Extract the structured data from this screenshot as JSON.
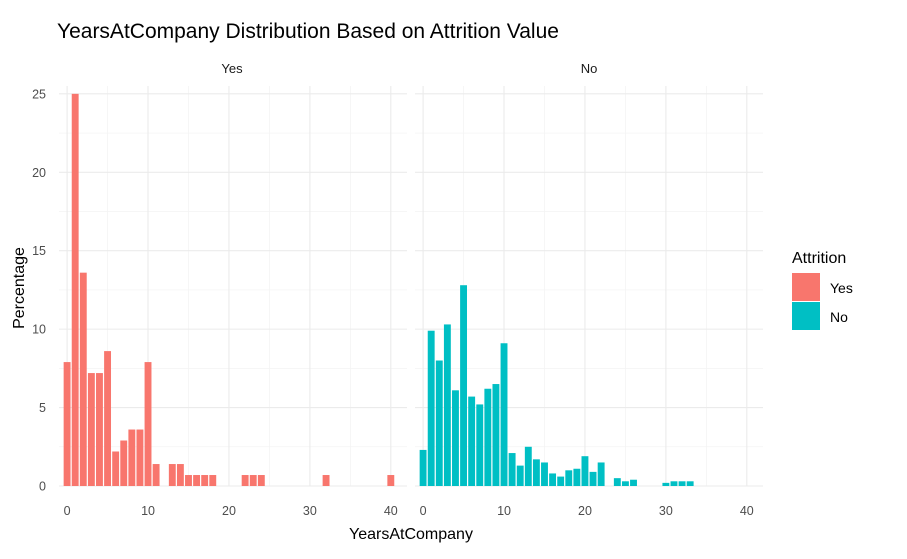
{
  "chart_data": {
    "type": "bar",
    "title": "YearsAtCompany Distribution Based on Attrition Value",
    "xlabel": "YearsAtCompany",
    "ylabel": "Percentage",
    "xlim": [
      -1,
      42
    ],
    "ylim": [
      0,
      25.5
    ],
    "x_ticks": [
      0,
      10,
      20,
      30,
      40
    ],
    "y_ticks": [
      0,
      5,
      10,
      15,
      20,
      25
    ],
    "grid": true,
    "legend": {
      "title": "Attrition",
      "position": "right"
    },
    "panels": [
      {
        "name": "Yes",
        "color": "#F8766D",
        "bins": [
          [
            0,
            7.9
          ],
          [
            1,
            25.0
          ],
          [
            2,
            13.6
          ],
          [
            3,
            7.2
          ],
          [
            4,
            7.2
          ],
          [
            5,
            8.6
          ],
          [
            6,
            2.2
          ],
          [
            7,
            2.9
          ],
          [
            8,
            3.6
          ],
          [
            9,
            3.6
          ],
          [
            10,
            7.9
          ],
          [
            11,
            1.4
          ],
          [
            13,
            1.4
          ],
          [
            14,
            1.4
          ],
          [
            15,
            0.7
          ],
          [
            16,
            0.7
          ],
          [
            17,
            0.7
          ],
          [
            18,
            0.7
          ],
          [
            22,
            0.7
          ],
          [
            23,
            0.7
          ],
          [
            24,
            0.7
          ],
          [
            32,
            0.7
          ],
          [
            40,
            0.7
          ]
        ]
      },
      {
        "name": "No",
        "color": "#00BFC4",
        "bins": [
          [
            0,
            2.3
          ],
          [
            1,
            9.9
          ],
          [
            2,
            8.0
          ],
          [
            3,
            10.3
          ],
          [
            4,
            6.1
          ],
          [
            5,
            12.8
          ],
          [
            6,
            5.7
          ],
          [
            7,
            5.2
          ],
          [
            8,
            6.2
          ],
          [
            9,
            6.5
          ],
          [
            10,
            9.1
          ],
          [
            11,
            2.1
          ],
          [
            12,
            1.3
          ],
          [
            13,
            2.5
          ],
          [
            14,
            1.7
          ],
          [
            15,
            1.5
          ],
          [
            16,
            0.8
          ],
          [
            17,
            0.6
          ],
          [
            18,
            1.0
          ],
          [
            19,
            1.1
          ],
          [
            20,
            1.9
          ],
          [
            21,
            0.9
          ],
          [
            22,
            1.5
          ],
          [
            24,
            0.5
          ],
          [
            25,
            0.3
          ],
          [
            26,
            0.4
          ],
          [
            30,
            0.2
          ],
          [
            31,
            0.3
          ],
          [
            32,
            0.3
          ],
          [
            33,
            0.3
          ]
        ]
      }
    ]
  }
}
